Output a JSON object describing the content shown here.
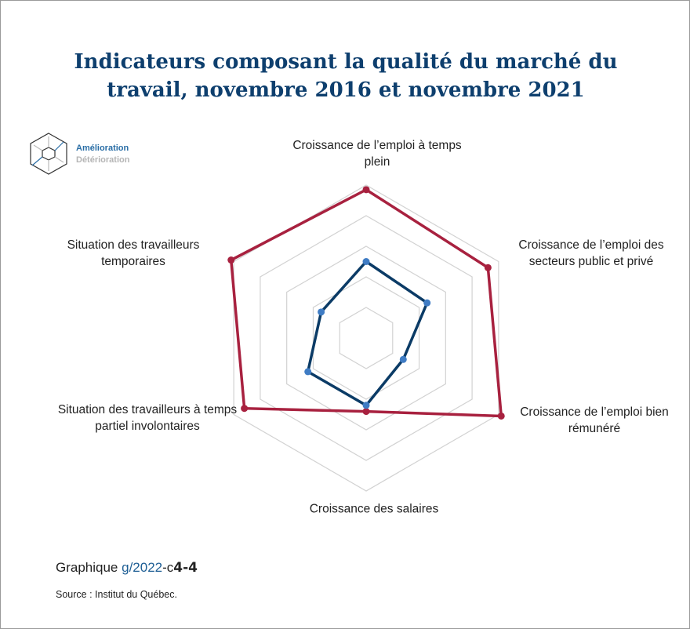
{
  "chart_data": {
    "type": "radar",
    "title": "Indicateurs composant la qualité du marché du travail, novembre 2016 et novembre 2021",
    "categories": [
      "Croissance de l’emploi à temps plein",
      "Croissance de l’emploi des secteurs public et privé",
      "Croissance de l’emploi bien rémunéré",
      "Croissance des salaires",
      "Situation des travailleurs à temps partiel involontaires",
      "Situation des travailleurs temporaires"
    ],
    "series": [
      {
        "color": "#a8213f",
        "values": [
          4.85,
          4.6,
          5.1,
          2.4,
          4.6,
          5.1
        ]
      },
      {
        "color": "#0b3b66",
        "values": [
          2.5,
          2.3,
          1.4,
          2.2,
          2.2,
          1.7
        ]
      }
    ],
    "ylim": [
      0,
      5
    ],
    "yticks": [
      1,
      2,
      3,
      4,
      5
    ],
    "grid": true,
    "legend": {
      "improve": "Amélioration",
      "worsen": "Détérioration"
    },
    "figure": {
      "prefix": "Graphique",
      "code": "g/2022",
      "sep": "-c",
      "num": "4-4"
    },
    "source": "Source : Institut du Québec."
  }
}
